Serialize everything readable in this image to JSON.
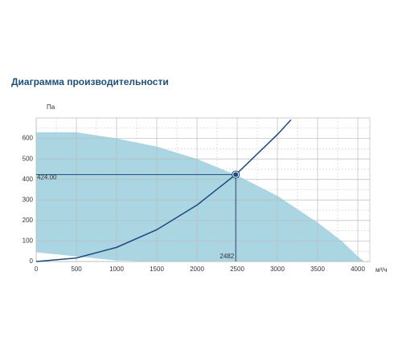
{
  "chart_data": {
    "type": "line",
    "title": "Диаграмма производительности",
    "y_label": "Па",
    "x_label": "м³/ч",
    "xlim": [
      0,
      4150
    ],
    "ylim": [
      0,
      700
    ],
    "xticks": [
      0,
      500,
      1000,
      1500,
      2000,
      2500,
      3000,
      3500,
      4000
    ],
    "yticks": [
      0,
      100,
      200,
      300,
      400,
      500,
      600
    ],
    "xminor": [
      250,
      750,
      1250,
      1750,
      2250,
      2750,
      3250,
      3750
    ],
    "yminor": [
      50,
      150,
      250,
      350,
      450,
      550,
      650
    ],
    "grid": true,
    "area": {
      "color": "#aad5e2",
      "x": [
        0,
        500,
        1000,
        1500,
        2000,
        2500,
        3000,
        3500,
        3800,
        4000,
        4080
      ],
      "upper": [
        630,
        630,
        600,
        560,
        500,
        420,
        320,
        190,
        100,
        25,
        0
      ],
      "lower": [
        45,
        25,
        5,
        0,
        0,
        0,
        0,
        0,
        0,
        0,
        0
      ]
    },
    "series": [
      {
        "color": "#1b4a7e",
        "x": [
          0,
          500,
          1000,
          1500,
          2000,
          2500,
          3000,
          3170
        ],
        "values": [
          0,
          17,
          69,
          155,
          275,
          430,
          619,
          691
        ]
      }
    ],
    "point": {
      "x": 2482,
      "y": 424,
      "x_label": "2482",
      "y_label": "424.00",
      "color": "#1b4a7e"
    }
  }
}
